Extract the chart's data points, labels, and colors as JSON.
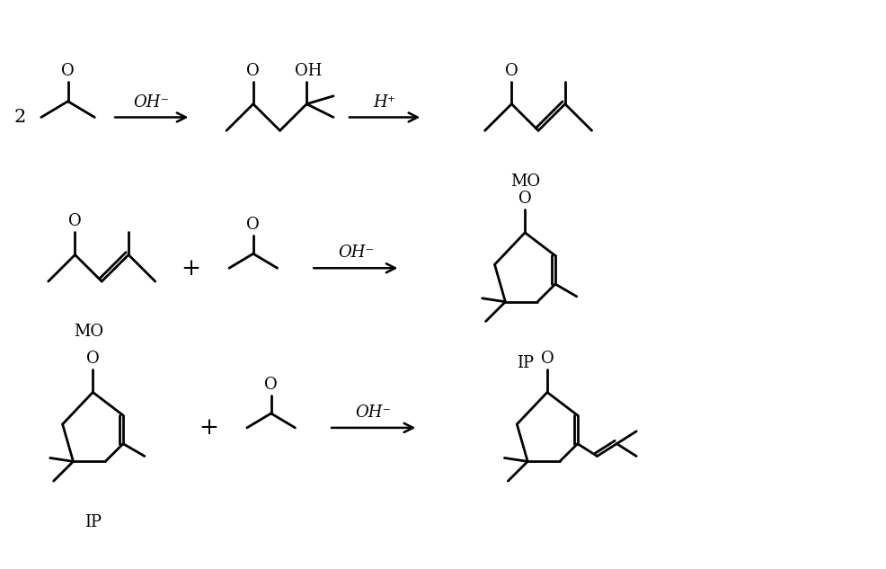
{
  "background_color": "#ffffff",
  "line_color": "#000000",
  "line_width": 2.0,
  "fig_width": 9.86,
  "fig_height": 6.33,
  "font_size": 13,
  "arrow_label_oh_minus": "OH⁻",
  "arrow_label_h_plus": "H⁺",
  "label_MO": "MO",
  "label_IP": "IP",
  "label_2": "2",
  "label_plus": "+"
}
